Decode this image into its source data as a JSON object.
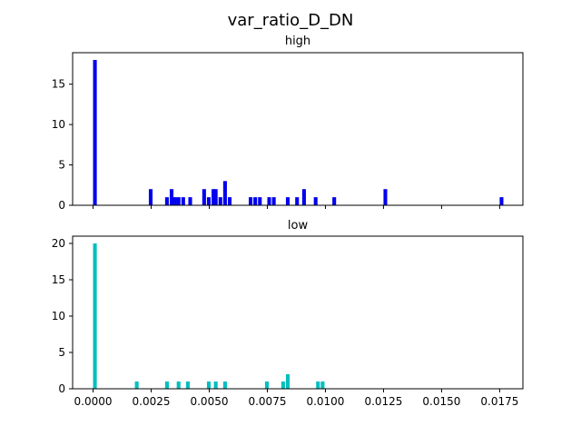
{
  "figure": {
    "suptitle": "var_ratio_D_DN"
  },
  "chart_data": [
    {
      "type": "bar",
      "title": "high",
      "xlabel": "",
      "ylabel": "",
      "color": "#0000ee",
      "xlim": [
        -0.00088,
        0.0185
      ],
      "ylim": [
        0,
        18.9
      ],
      "bin_width": 0.00016,
      "yticks": [
        "0",
        "5",
        "10",
        "15"
      ],
      "ytick_values": [
        0,
        5,
        10,
        15
      ],
      "xtick_values": [
        0,
        0.0025,
        0.005,
        0.0075,
        0.01,
        0.0125,
        0.015,
        0.0175
      ],
      "xtick_labels_visible": false,
      "bins": [
        {
          "x": 0.0,
          "count": 18
        },
        {
          "x": 0.0024,
          "count": 2
        },
        {
          "x": 0.0031,
          "count": 1
        },
        {
          "x": 0.0033,
          "count": 2
        },
        {
          "x": 0.00345,
          "count": 1
        },
        {
          "x": 0.0036,
          "count": 1
        },
        {
          "x": 0.0038,
          "count": 1
        },
        {
          "x": 0.0041,
          "count": 1
        },
        {
          "x": 0.0047,
          "count": 2
        },
        {
          "x": 0.0049,
          "count": 1
        },
        {
          "x": 0.0051,
          "count": 2
        },
        {
          "x": 0.0052,
          "count": 2
        },
        {
          "x": 0.0054,
          "count": 1
        },
        {
          "x": 0.0056,
          "count": 3
        },
        {
          "x": 0.0058,
          "count": 1
        },
        {
          "x": 0.0067,
          "count": 1
        },
        {
          "x": 0.0069,
          "count": 1
        },
        {
          "x": 0.0071,
          "count": 1
        },
        {
          "x": 0.0075,
          "count": 1
        },
        {
          "x": 0.0077,
          "count": 1
        },
        {
          "x": 0.0083,
          "count": 1
        },
        {
          "x": 0.0087,
          "count": 1
        },
        {
          "x": 0.009,
          "count": 2
        },
        {
          "x": 0.0095,
          "count": 1
        },
        {
          "x": 0.0103,
          "count": 1
        },
        {
          "x": 0.0125,
          "count": 2
        },
        {
          "x": 0.0175,
          "count": 1
        }
      ]
    },
    {
      "type": "bar",
      "title": "low",
      "xlabel": "",
      "ylabel": "",
      "color": "#00bfbf",
      "xlim": [
        -0.00088,
        0.0185
      ],
      "ylim": [
        0,
        21
      ],
      "bin_width": 0.00016,
      "yticks": [
        "0",
        "5",
        "10",
        "15",
        "20"
      ],
      "ytick_values": [
        0,
        5,
        10,
        15,
        20
      ],
      "xtick_values": [
        0,
        0.0025,
        0.005,
        0.0075,
        0.01,
        0.0125,
        0.015,
        0.0175
      ],
      "xtick_labels_visible": true,
      "xticks": [
        "0.0000",
        "0.0025",
        "0.0050",
        "0.0075",
        "0.0100",
        "0.0125",
        "0.0150",
        "0.0175"
      ],
      "bins": [
        {
          "x": 0.0,
          "count": 20
        },
        {
          "x": 0.0018,
          "count": 1
        },
        {
          "x": 0.0031,
          "count": 1
        },
        {
          "x": 0.0036,
          "count": 1
        },
        {
          "x": 0.004,
          "count": 1
        },
        {
          "x": 0.0049,
          "count": 1
        },
        {
          "x": 0.0052,
          "count": 1
        },
        {
          "x": 0.0056,
          "count": 1
        },
        {
          "x": 0.0074,
          "count": 1
        },
        {
          "x": 0.0081,
          "count": 1
        },
        {
          "x": 0.0083,
          "count": 2
        },
        {
          "x": 0.0096,
          "count": 1
        },
        {
          "x": 0.0098,
          "count": 1
        }
      ]
    }
  ]
}
